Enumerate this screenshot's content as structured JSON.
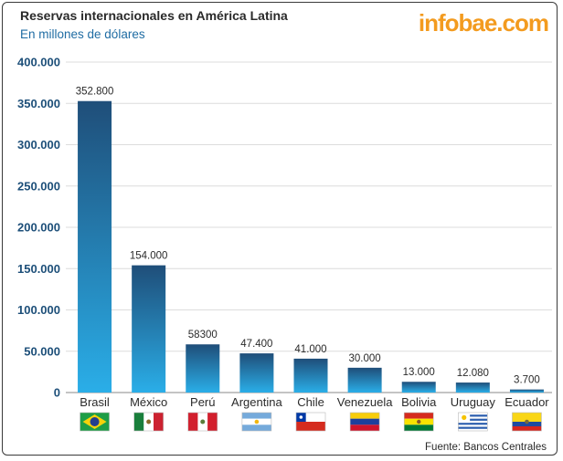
{
  "header": {
    "title": "Reservas internacionales en América Latina",
    "subtitle": "En millones de dólares",
    "brand": "infobae.com"
  },
  "footer": {
    "source": "Fuente: Bancos Centrales"
  },
  "chart_data": {
    "type": "bar",
    "title": "Reservas internacionales en América Latina",
    "subtitle": "En millones de dólares",
    "xlabel": "",
    "ylabel": "",
    "ylim": [
      0,
      400000
    ],
    "yticks": [
      0,
      50000,
      100000,
      150000,
      200000,
      250000,
      300000,
      350000,
      400000
    ],
    "ytick_labels": [
      "0",
      "50.000",
      "100.000",
      "150.000",
      "200.000",
      "250.000",
      "300.000",
      "350.000",
      "400.000"
    ],
    "grid": true,
    "categories": [
      "Brasil",
      "México",
      "Perú",
      "Argentina",
      "Chile",
      "Venezuela",
      "Bolivia",
      "Uruguay",
      "Ecuador"
    ],
    "values": [
      352800,
      154000,
      58300,
      47400,
      41000,
      30000,
      13000,
      12080,
      3700
    ],
    "value_labels": [
      "352.800",
      "154.000",
      "58300",
      "47.400",
      "41.000",
      "30.000",
      "13.000",
      "12.080",
      "3.700"
    ],
    "flags": [
      "brazil-flag-icon",
      "mexico-flag-icon",
      "peru-flag-icon",
      "argentina-flag-icon",
      "chile-flag-icon",
      "venezuela-flag-icon",
      "bolivia-flag-icon",
      "uruguay-flag-icon",
      "ecuador-flag-icon"
    ],
    "colors": {
      "bar_top": "#1f4e79",
      "bar_bottom": "#2aaee8",
      "axis_text": "#1d4f79",
      "brand": "#f39b1f"
    }
  }
}
